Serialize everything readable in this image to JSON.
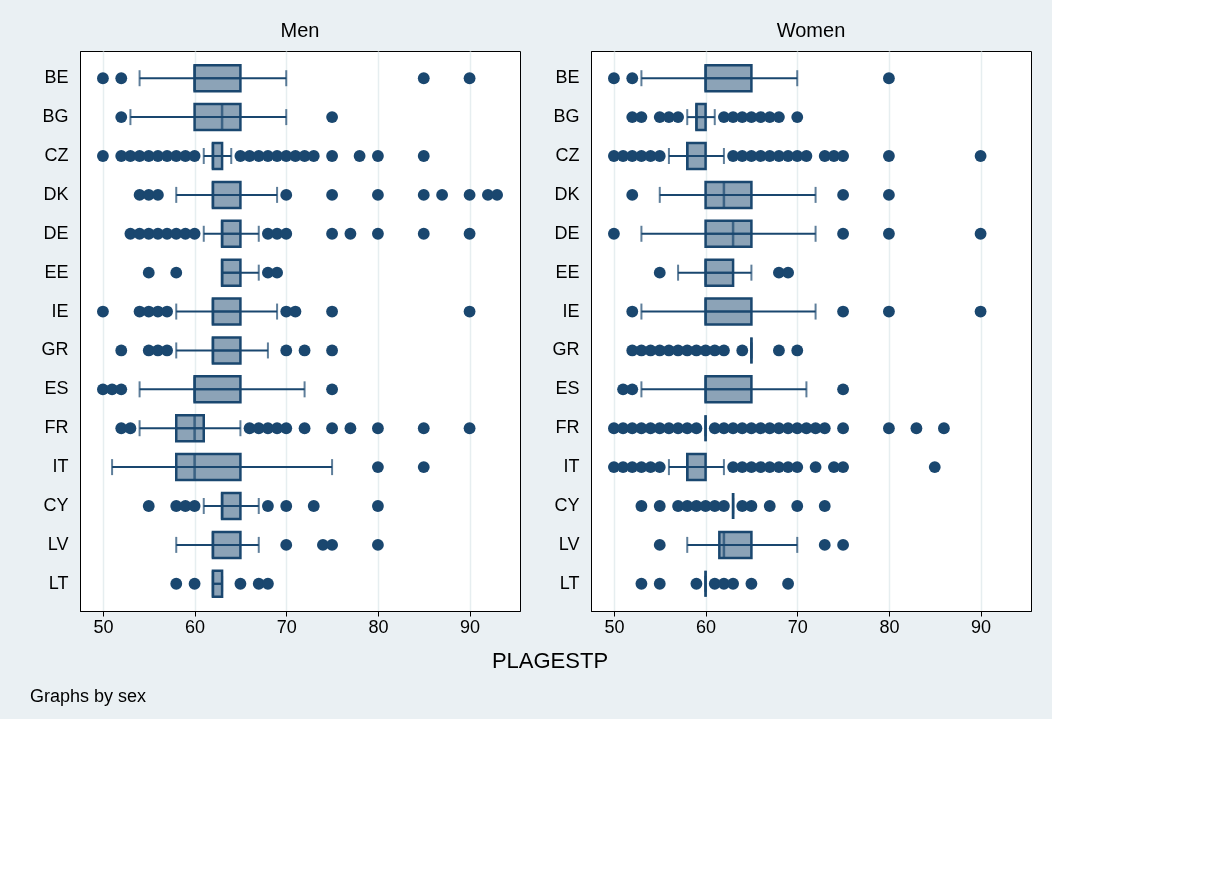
{
  "chart_data": [
    {
      "type": "box",
      "title": "Men",
      "xlabel": "PLAGESTP",
      "annotations": [
        "Graphs by sex"
      ],
      "orientation": "horizontal",
      "grid": "x",
      "marker": "circle",
      "categories": [
        "BE",
        "BG",
        "CZ",
        "DK",
        "DE",
        "EE",
        "IE",
        "GR",
        "ES",
        "FR",
        "IT",
        "CY",
        "LV",
        "LT"
      ],
      "xlim": [
        47.5,
        95.5
      ],
      "xticks": [
        50,
        60,
        70,
        80,
        90
      ],
      "series": [
        {
          "color": "#1a476f",
          "boxes": [
            {
              "low": 54,
              "q1": 60,
              "median": 60,
              "q3": 65,
              "high": 70,
              "outliers": [
                50,
                52,
                85,
                90
              ]
            },
            {
              "low": 53,
              "q1": 60,
              "median": 63,
              "q3": 65,
              "high": 70,
              "outliers": [
                52,
                75
              ]
            },
            {
              "low": 61,
              "q1": 62,
              "median": 62,
              "q3": 63,
              "high": 64,
              "outliers": [
                50,
                52,
                53,
                54,
                55,
                56,
                57,
                58,
                59,
                60,
                65,
                66,
                67,
                68,
                69,
                70,
                71,
                72,
                73,
                75,
                78,
                80,
                85
              ]
            },
            {
              "low": 58,
              "q1": 62,
              "median": 62,
              "q3": 65,
              "high": 69,
              "outliers": [
                54,
                55,
                56,
                70,
                75,
                80,
                85,
                87,
                90,
                92,
                93
              ]
            },
            {
              "low": 61,
              "q1": 63,
              "median": 63,
              "q3": 65,
              "high": 67,
              "outliers": [
                53,
                54,
                55,
                56,
                57,
                58,
                59,
                60,
                68,
                69,
                70,
                75,
                77,
                80,
                85,
                90
              ]
            },
            {
              "low": 63,
              "q1": 63,
              "median": 63,
              "q3": 65,
              "high": 67,
              "outliers": [
                55,
                58,
                68,
                69
              ]
            },
            {
              "low": 58,
              "q1": 62,
              "median": 62,
              "q3": 65,
              "high": 69,
              "outliers": [
                50,
                54,
                55,
                56,
                57,
                70,
                71,
                75,
                90
              ]
            },
            {
              "low": 58,
              "q1": 62,
              "median": 62,
              "q3": 65,
              "high": 68,
              "outliers": [
                52,
                55,
                56,
                57,
                70,
                72,
                75
              ]
            },
            {
              "low": 54,
              "q1": 60,
              "median": 60,
              "q3": 65,
              "high": 72,
              "outliers": [
                50,
                51,
                52,
                75
              ]
            },
            {
              "low": 54,
              "q1": 58,
              "median": 60,
              "q3": 61,
              "high": 65,
              "outliers": [
                52,
                53,
                66,
                67,
                68,
                69,
                70,
                72,
                75,
                77,
                80,
                85,
                90
              ]
            },
            {
              "low": 51,
              "q1": 58,
              "median": 60,
              "q3": 65,
              "high": 75,
              "outliers": [
                80,
                85
              ]
            },
            {
              "low": 61,
              "q1": 63,
              "median": 63,
              "q3": 65,
              "high": 67,
              "outliers": [
                55,
                58,
                59,
                60,
                68,
                70,
                73,
                80
              ]
            },
            {
              "low": 58,
              "q1": 62,
              "median": 62,
              "q3": 65,
              "high": 67,
              "outliers": [
                70,
                74,
                75,
                80
              ]
            },
            {
              "low": 62,
              "q1": 62,
              "median": 62,
              "q3": 63,
              "high": 63,
              "outliers": [
                58,
                60,
                65,
                67,
                68
              ]
            }
          ]
        }
      ]
    },
    {
      "type": "box",
      "title": "Women",
      "orientation": "horizontal",
      "grid": "x",
      "marker": "circle",
      "categories": [
        "BE",
        "BG",
        "CZ",
        "DK",
        "DE",
        "EE",
        "IE",
        "GR",
        "ES",
        "FR",
        "IT",
        "CY",
        "LV",
        "LT"
      ],
      "xlim": [
        47.5,
        95.5
      ],
      "xticks": [
        50,
        60,
        70,
        80,
        90
      ],
      "series": [
        {
          "color": "#1a476f",
          "boxes": [
            {
              "low": 53,
              "q1": 60,
              "median": 60,
              "q3": 65,
              "high": 70,
              "outliers": [
                50,
                52,
                80
              ]
            },
            {
              "low": 58,
              "q1": 59,
              "median": 59,
              "q3": 60,
              "high": 61,
              "outliers": [
                52,
                53,
                55,
                56,
                57,
                62,
                63,
                64,
                65,
                66,
                67,
                68,
                70
              ]
            },
            {
              "low": 56,
              "q1": 58,
              "median": 58,
              "q3": 60,
              "high": 62,
              "outliers": [
                50,
                51,
                52,
                53,
                54,
                55,
                63,
                64,
                65,
                66,
                67,
                68,
                69,
                70,
                71,
                73,
                74,
                75,
                80,
                90
              ]
            },
            {
              "low": 55,
              "q1": 60,
              "median": 62,
              "q3": 65,
              "high": 72,
              "outliers": [
                52,
                75,
                80
              ]
            },
            {
              "low": 53,
              "q1": 60,
              "median": 63,
              "q3": 65,
              "high": 72,
              "outliers": [
                50,
                75,
                80,
                90
              ]
            },
            {
              "low": 57,
              "q1": 60,
              "median": 60,
              "q3": 63,
              "high": 65,
              "outliers": [
                55,
                68,
                69
              ]
            },
            {
              "low": 53,
              "q1": 60,
              "median": 60,
              "q3": 65,
              "high": 72,
              "outliers": [
                52,
                75,
                80,
                90
              ]
            },
            {
              "low": 65,
              "q1": 65,
              "median": 65,
              "q3": 65,
              "high": 65,
              "outliers": [
                52,
                53,
                54,
                55,
                56,
                57,
                58,
                59,
                60,
                61,
                62,
                64,
                68,
                70
              ]
            },
            {
              "low": 53,
              "q1": 60,
              "median": 60,
              "q3": 65,
              "high": 71,
              "outliers": [
                51,
                52,
                75
              ]
            },
            {
              "low": 60,
              "q1": 60,
              "median": 60,
              "q3": 60,
              "high": 60,
              "outliers": [
                50,
                51,
                52,
                53,
                54,
                55,
                56,
                57,
                58,
                59,
                61,
                62,
                63,
                64,
                65,
                66,
                67,
                68,
                69,
                70,
                71,
                72,
                73,
                75,
                80,
                83,
                86
              ]
            },
            {
              "low": 56,
              "q1": 58,
              "median": 58,
              "q3": 60,
              "high": 62,
              "outliers": [
                50,
                51,
                52,
                53,
                54,
                55,
                63,
                64,
                65,
                66,
                67,
                68,
                69,
                70,
                72,
                74,
                75,
                85
              ]
            },
            {
              "low": 63,
              "q1": 63,
              "median": 63,
              "q3": 63,
              "high": 63,
              "outliers": [
                53,
                55,
                57,
                58,
                59,
                60,
                61,
                62,
                64,
                65,
                67,
                70,
                73
              ]
            },
            {
              "low": 58,
              "q1": 61.5,
              "median": 62,
              "q3": 65,
              "high": 70,
              "outliers": [
                55,
                73,
                75
              ]
            },
            {
              "low": 60,
              "q1": 60,
              "median": 60,
              "q3": 60,
              "high": 60,
              "outliers": [
                53,
                55,
                59,
                61,
                62,
                63,
                65,
                69
              ]
            }
          ]
        }
      ]
    }
  ]
}
